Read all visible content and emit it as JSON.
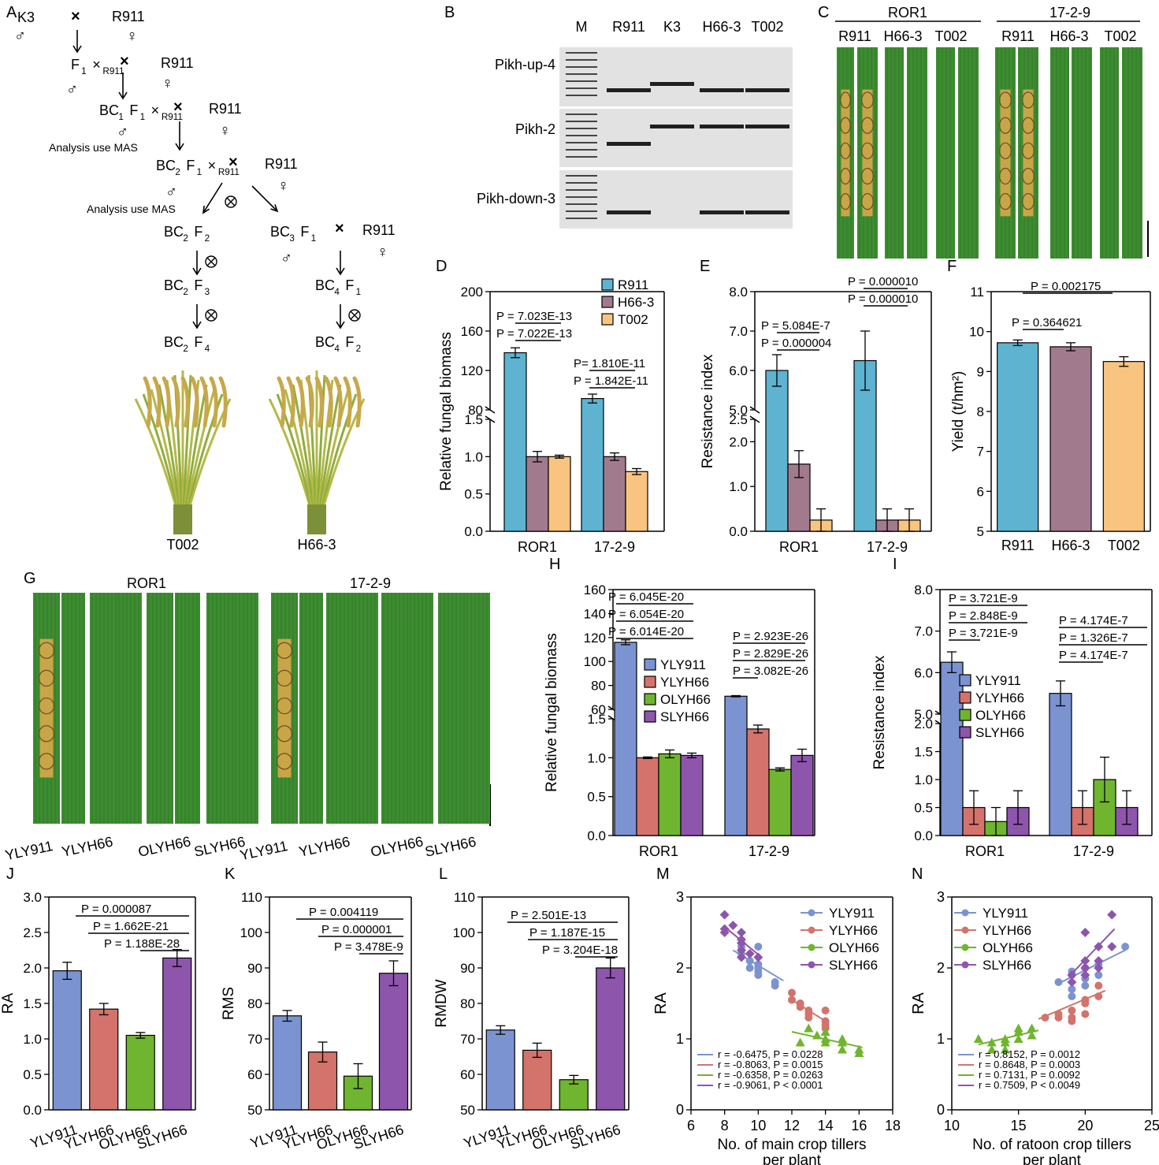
{
  "colors": {
    "blue": "#5eb3d1",
    "mauve": "#a27a8e",
    "orange": "#f9c480",
    "cb": "#7b93d1",
    "cr": "#d3736b",
    "cg": "#6fb52f",
    "cp": "#8e55ad",
    "leaf": "#3d8c31",
    "leaf_dark": "#2c6e25",
    "lesion": "#c8a547",
    "gel": "#e2e2e2",
    "band": "#202020"
  },
  "panel_letters": [
    "A",
    "B",
    "C",
    "D",
    "E",
    "F",
    "G",
    "H",
    "I",
    "J",
    "K",
    "L",
    "M",
    "N"
  ],
  "panel_a": {
    "parents": [
      "K3",
      "×",
      "R911"
    ],
    "f1_row": [
      "F",
      "1",
      "×",
      "R911"
    ],
    "bc1_row": [
      "BC",
      "1",
      "F",
      "1",
      "×",
      "R911"
    ],
    "mas_1": "Analysis use MAS",
    "bc2_row": [
      "BC",
      "2",
      "F",
      "1",
      "×",
      "R911"
    ],
    "mas_2": "Analysis use MAS",
    "left_gen": [
      [
        "BC",
        "2",
        "F",
        "2"
      ],
      [
        "BC",
        "2",
        "F",
        "3"
      ],
      [
        "BC",
        "2",
        "F",
        "4"
      ]
    ],
    "right_gen": [
      [
        "BC",
        "3",
        "F",
        "1"
      ],
      [
        "BC",
        "4",
        "F",
        "1"
      ],
      [
        "BC",
        "4",
        "F",
        "2"
      ]
    ],
    "right_cross": [
      "×",
      "R911"
    ],
    "male": "♂",
    "female": "♀",
    "selfing": "⊗",
    "plant_labels": [
      "T002",
      "H66-3"
    ]
  },
  "panel_b": {
    "lanes": [
      "M",
      "R911",
      "K3",
      "H66-3",
      "T002"
    ],
    "markers": [
      "Pikh-up-4",
      "Pikh-2",
      "Pikh-down-3"
    ]
  },
  "panel_c": {
    "groups": [
      "ROR1",
      "17-2-9"
    ],
    "varieties": [
      "R911",
      "H66-3",
      "T002"
    ]
  },
  "panel_g": {
    "groups": [
      "ROR1",
      "17-2-9"
    ],
    "varieties": [
      "YLY911",
      "YLYH66",
      "OLYH66",
      "SLYH66"
    ]
  },
  "chart_data": [
    {
      "panel": "D",
      "type": "bar",
      "ylabel": "Relative fungal biomass",
      "categories": [
        "ROR1",
        "17-2-9"
      ],
      "series": [
        {
          "name": "R911",
          "values": [
            138,
            91.5
          ],
          "errors": [
            5,
            4.5
          ]
        },
        {
          "name": "H66-3",
          "values": [
            1.0,
            1.0
          ],
          "errors": [
            0.07,
            0.05
          ]
        },
        {
          "name": "T002",
          "values": [
            1.0,
            0.8
          ],
          "errors": [
            0.02,
            0.04
          ]
        }
      ],
      "broken_axis": {
        "lower_ticks": [
          "0.0",
          "0.5",
          "1.0",
          "1.5"
        ],
        "upper_ticks": [
          "80",
          "120",
          "160",
          "200"
        ]
      },
      "p_values": [
        "P = 7.023E-13",
        "P = 7.022E-13",
        "P= 1.810E-11",
        "P = 1.842E-11"
      ]
    },
    {
      "panel": "E",
      "type": "bar",
      "ylabel": "Resistance index",
      "categories": [
        "ROR1",
        "17-2-9"
      ],
      "series": [
        {
          "name": "R911",
          "values": [
            6.0,
            6.25
          ],
          "errors": [
            0.4,
            0.75
          ]
        },
        {
          "name": "H66-3",
          "values": [
            1.5,
            0.25
          ],
          "errors": [
            0.3,
            0.25
          ]
        },
        {
          "name": "T002",
          "values": [
            0.25,
            0.25
          ],
          "errors": [
            0.25,
            0.25
          ]
        }
      ],
      "broken_axis": {
        "lower_ticks": [
          "0.0",
          "1.0",
          "2.0",
          "2.5"
        ],
        "upper_ticks": [
          "5.0",
          "6.0",
          "7.0",
          "8.0"
        ]
      },
      "p_values": [
        "P = 5.084E-7",
        "P = 0.000004",
        "P = 0.000010",
        "P = 0.000010"
      ]
    },
    {
      "panel": "F",
      "type": "bar",
      "ylabel": "Yield (t/hm²)",
      "categories": [
        "R911",
        "H66-3",
        "T002"
      ],
      "values": [
        9.72,
        9.62,
        9.25
      ],
      "errors": [
        0.07,
        0.1,
        0.12
      ],
      "ylim": [
        5,
        11
      ],
      "yticks": [
        "5",
        "6",
        "7",
        "8",
        "9",
        "10",
        "11"
      ],
      "p_values": [
        "P = 0.002175",
        "P = 0.364621"
      ]
    },
    {
      "panel": "H",
      "type": "bar",
      "ylabel": "Relative fungal biomass",
      "categories": [
        "ROR1",
        "17-2-9"
      ],
      "series": [
        {
          "name": "YLY911",
          "values": [
            116,
            71
          ],
          "errors": [
            2,
            0.5
          ]
        },
        {
          "name": "YLYH66",
          "values": [
            1.0,
            1.37
          ],
          "errors": [
            0.01,
            0.05
          ]
        },
        {
          "name": "OLYH66",
          "values": [
            1.05,
            0.85
          ],
          "errors": [
            0.05,
            0.02
          ]
        },
        {
          "name": "SLYH66",
          "values": [
            1.03,
            1.03
          ],
          "errors": [
            0.03,
            0.08
          ]
        }
      ],
      "broken_axis": {
        "lower_ticks": [
          "0.0",
          "0.5",
          "1.0",
          "1.5"
        ],
        "upper_ticks": [
          "60",
          "80",
          "100",
          "120",
          "140",
          "160"
        ]
      },
      "p_values": [
        "P = 6.045E-20",
        "P = 6.054E-20",
        "P = 6.014E-20",
        "P = 2.923E-26",
        "P = 2.829E-26",
        "P = 3.082E-26"
      ]
    },
    {
      "panel": "I",
      "type": "bar",
      "ylabel": "Resistance index",
      "categories": [
        "ROR1",
        "17-2-9"
      ],
      "series": [
        {
          "name": "YLY911",
          "values": [
            6.25,
            5.5
          ],
          "errors": [
            0.25,
            0.3
          ]
        },
        {
          "name": "YLYH66",
          "values": [
            0.5,
            0.5
          ],
          "errors": [
            0.3,
            0.3
          ]
        },
        {
          "name": "OLYH66",
          "values": [
            0.25,
            1.0
          ],
          "errors": [
            0.25,
            0.4
          ]
        },
        {
          "name": "SLYH66",
          "values": [
            0.5,
            0.5
          ],
          "errors": [
            0.3,
            0.3
          ]
        }
      ],
      "broken_axis": {
        "lower_ticks": [
          "0.0",
          "0.5",
          "1.0",
          "1.5",
          "2.0"
        ],
        "upper_ticks": [
          "5.0",
          "6.0",
          "7.0",
          "8.0"
        ]
      },
      "p_values": [
        "P = 3.721E-9",
        "P = 2.848E-9",
        "P = 3.721E-9",
        "P = 4.174E-7",
        "P = 1.326E-7",
        "P = 4.174E-7"
      ]
    },
    {
      "panel": "J",
      "type": "bar",
      "ylabel": "RA",
      "categories": [
        "YLY911",
        "YLYH66",
        "OLYH66",
        "SLYH66"
      ],
      "values": [
        1.96,
        1.42,
        1.05,
        2.14
      ],
      "errors": [
        0.12,
        0.08,
        0.04,
        0.12
      ],
      "ylim": [
        0,
        3.0
      ],
      "yticks": [
        "0.0",
        "0.5",
        "1.0",
        "1.5",
        "2.0",
        "2.5",
        "3.0"
      ],
      "p_values": [
        "P = 0.000087",
        "P = 1.662E-21",
        "P = 1.188E-28"
      ]
    },
    {
      "panel": "K",
      "type": "bar",
      "ylabel": "RMS",
      "categories": [
        "YLY911",
        "YLYH66",
        "OLYH66",
        "SLYH66"
      ],
      "values": [
        76.5,
        66.3,
        59.5,
        88.5
      ],
      "errors": [
        1.5,
        2.8,
        3.5,
        3.5
      ],
      "ylim": [
        50,
        110
      ],
      "yticks": [
        "50",
        "60",
        "70",
        "80",
        "90",
        "100",
        "110"
      ],
      "p_values": [
        "P = 0.004119",
        "P = 0.000001",
        "P = 3.478E-9"
      ]
    },
    {
      "panel": "L",
      "type": "bar",
      "ylabel": "RMDW",
      "categories": [
        "YLY911",
        "YLYH66",
        "OLYH66",
        "SLYH66"
      ],
      "values": [
        72.5,
        66.8,
        58.5,
        90.0
      ],
      "errors": [
        1.2,
        2.0,
        1.2,
        2.8
      ],
      "ylim": [
        50,
        110
      ],
      "yticks": [
        "50",
        "60",
        "70",
        "80",
        "90",
        "100",
        "110"
      ],
      "p_values": [
        "P = 2.501E-13",
        "P = 1.187E-15",
        "P = 3.204E-18"
      ]
    },
    {
      "panel": "M",
      "type": "scatter",
      "ylabel": "RA",
      "xlabel": [
        "No. of main crop tillers",
        "per plant"
      ],
      "xlim": [
        6,
        18
      ],
      "ylim": [
        0,
        3
      ],
      "xticks": [
        "6",
        "8",
        "10",
        "12",
        "14",
        "16",
        "18"
      ],
      "yticks": [
        "0",
        "1",
        "2",
        "3"
      ],
      "series": [
        {
          "name": "YLY911",
          "points": [
            [
              9,
              2.3
            ],
            [
              9,
              2.2
            ],
            [
              9.5,
              2.1
            ],
            [
              10,
              2.3
            ],
            [
              10,
              2.05
            ],
            [
              10,
              2.0
            ],
            [
              10,
              1.95
            ],
            [
              10,
              1.9
            ],
            [
              11,
              1.8
            ],
            [
              11,
              1.75
            ],
            [
              9.5,
              2.0
            ]
          ],
          "fit": [
            [
              8.5,
              2.25
            ],
            [
              11.5,
              1.82
            ]
          ]
        },
        {
          "name": "YLYH66",
          "points": [
            [
              12,
              1.65
            ],
            [
              12,
              1.55
            ],
            [
              12.5,
              1.5
            ],
            [
              13,
              1.4
            ],
            [
              13,
              1.35
            ],
            [
              13,
              1.3
            ],
            [
              14,
              1.4
            ],
            [
              14,
              1.25
            ],
            [
              14,
              1.2
            ],
            [
              14,
              1.15
            ],
            [
              12.5,
              1.45
            ]
          ],
          "fit": [
            [
              12,
              1.55
            ],
            [
              14.2,
              1.22
            ]
          ]
        },
        {
          "name": "OLYH66",
          "points": [
            [
              12.5,
              0.95
            ],
            [
              13,
              1.15
            ],
            [
              13.5,
              1.05
            ],
            [
              14,
              1.1
            ],
            [
              14,
              1.0
            ],
            [
              14,
              0.95
            ],
            [
              15,
              1.0
            ],
            [
              15,
              0.95
            ],
            [
              15,
              0.85
            ],
            [
              16,
              0.85
            ],
            [
              16,
              0.8
            ]
          ],
          "fit": [
            [
              12,
              1.1
            ],
            [
              16.2,
              0.88
            ]
          ]
        },
        {
          "name": "SLYH66",
          "points": [
            [
              8,
              2.75
            ],
            [
              8,
              2.55
            ],
            [
              8,
              2.5
            ],
            [
              8.5,
              2.6
            ],
            [
              9,
              2.5
            ],
            [
              9,
              2.4
            ],
            [
              9,
              2.35
            ],
            [
              9,
              2.25
            ],
            [
              9,
              2.15
            ],
            [
              9.5,
              2.2
            ],
            [
              10,
              2.15
            ]
          ],
          "fit": [
            [
              8,
              2.58
            ],
            [
              10.2,
              2.15
            ]
          ]
        }
      ],
      "stats": [
        "r = -0.6475, P = 0.0228",
        "r = -0.8063, P = 0.0015",
        "r = -0.6358, P = 0.0263",
        "r = -0.9061, P < 0.0001"
      ]
    },
    {
      "panel": "N",
      "type": "scatter",
      "ylabel": "RA",
      "xlabel": [
        "No. of ratoon crop tillers",
        "per plant"
      ],
      "xlim": [
        10,
        25
      ],
      "ylim": [
        0,
        3
      ],
      "xticks": [
        "10",
        "15",
        "20",
        "25"
      ],
      "yticks": [
        "0",
        "1",
        "2",
        "3"
      ],
      "series": [
        {
          "name": "YLY911",
          "points": [
            [
              18,
              1.8
            ],
            [
              19,
              1.95
            ],
            [
              19,
              1.9
            ],
            [
              19,
              1.7
            ],
            [
              19,
              1.6
            ],
            [
              20,
              2.0
            ],
            [
              20,
              1.85
            ],
            [
              20,
              1.75
            ],
            [
              21,
              2.05
            ],
            [
              21,
              1.9
            ],
            [
              23,
              2.3
            ]
          ],
          "fit": [
            [
              18,
              1.78
            ],
            [
              23,
              2.25
            ]
          ]
        },
        {
          "name": "YLYH66",
          "points": [
            [
              17,
              1.3
            ],
            [
              18,
              1.35
            ],
            [
              18,
              1.3
            ],
            [
              19,
              1.4
            ],
            [
              19,
              1.3
            ],
            [
              19,
              1.25
            ],
            [
              20,
              1.55
            ],
            [
              20,
              1.5
            ],
            [
              20,
              1.35
            ],
            [
              21,
              1.6
            ],
            [
              21,
              1.75
            ]
          ],
          "fit": [
            [
              16.5,
              1.28
            ],
            [
              21.5,
              1.68
            ]
          ]
        },
        {
          "name": "OLYH66",
          "points": [
            [
              12,
              1.0
            ],
            [
              13,
              0.95
            ],
            [
              13,
              0.85
            ],
            [
              14,
              1.0
            ],
            [
              14,
              0.95
            ],
            [
              14,
              0.85
            ],
            [
              15,
              1.15
            ],
            [
              15,
              1.1
            ],
            [
              15,
              1.0
            ],
            [
              16,
              1.15
            ],
            [
              16,
              1.05
            ]
          ],
          "fit": [
            [
              12,
              0.92
            ],
            [
              16.5,
              1.12
            ]
          ]
        },
        {
          "name": "SLYH66",
          "points": [
            [
              19,
              1.9
            ],
            [
              19,
              1.8
            ],
            [
              20,
              2.1
            ],
            [
              20,
              2.0
            ],
            [
              20,
              1.9
            ],
            [
              20,
              2.5
            ],
            [
              21,
              2.3
            ],
            [
              21,
              2.1
            ],
            [
              21,
              2.0
            ],
            [
              22,
              2.75
            ],
            [
              22,
              2.3
            ]
          ],
          "fit": [
            [
              19,
              1.92
            ],
            [
              22.2,
              2.55
            ]
          ]
        }
      ],
      "stats": [
        "r = 0.8152, P = 0.0012",
        "r = 0.8648, P = 0.0003",
        "r = 0.7131, P = 0.0092",
        "r = 0.7509, P < 0.0049"
      ]
    }
  ]
}
